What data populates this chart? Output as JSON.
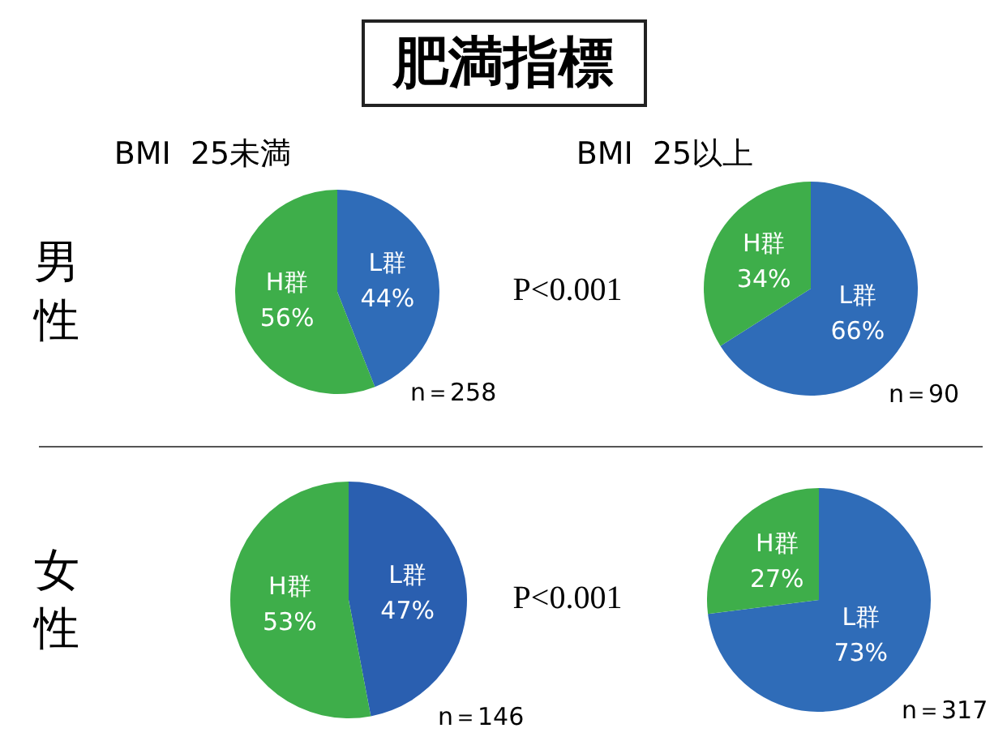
{
  "chart_data": [
    {
      "type": "pie",
      "title": "肥満指標",
      "subtitle": "BMI  25未満",
      "ylabel": "男性",
      "categories": [
        "L群",
        "H群"
      ],
      "values": [
        44,
        56
      ],
      "colors": [
        "#2f6cb8",
        "#3eae4a"
      ],
      "value_labels": [
        "44%",
        "56%"
      ],
      "legend": false,
      "annotations": [
        "n＝258",
        "P<0.001"
      ]
    },
    {
      "type": "pie",
      "subtitle": "BMI  25以上",
      "categories": [
        "L群",
        "H群"
      ],
      "values": [
        66,
        34
      ],
      "colors": [
        "#2f6cb8",
        "#3eae4a"
      ],
      "value_labels": [
        "66%",
        "34%"
      ],
      "legend": false,
      "annotations": [
        "n＝90"
      ]
    },
    {
      "type": "pie",
      "ylabel": "女性",
      "categories": [
        "L群",
        "H群"
      ],
      "values": [
        47,
        53
      ],
      "colors": [
        "#2a5fb0",
        "#3eae4a"
      ],
      "value_labels": [
        "47%",
        "53%"
      ],
      "legend": false,
      "annotations": [
        "n＝146",
        "P<0.001"
      ]
    },
    {
      "type": "pie",
      "categories": [
        "L群",
        "H群"
      ],
      "values": [
        73,
        27
      ],
      "colors": [
        "#2f6cb8",
        "#3eae4a"
      ],
      "value_labels": [
        "73%",
        "27%"
      ],
      "legend": false,
      "annotations": [
        "n＝317"
      ]
    }
  ]
}
